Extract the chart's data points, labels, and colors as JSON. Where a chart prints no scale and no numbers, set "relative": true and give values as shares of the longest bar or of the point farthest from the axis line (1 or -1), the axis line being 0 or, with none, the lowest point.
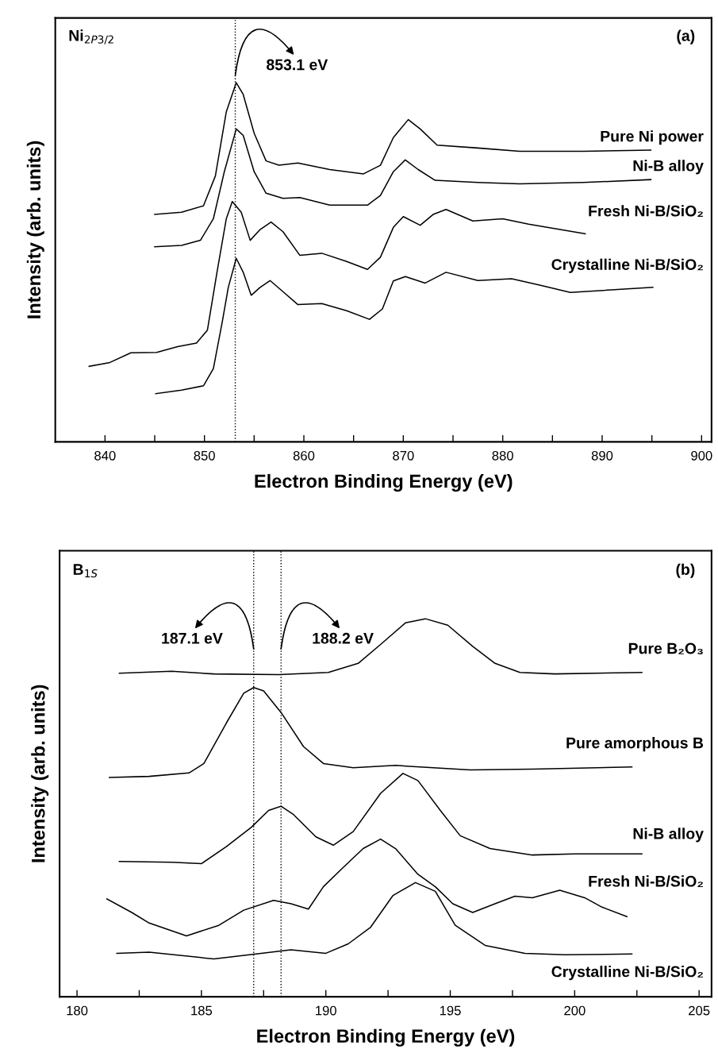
{
  "chart_data": [
    {
      "type": "line",
      "relative": true,
      "xlabel": "Electron Binding Energy (eV)",
      "ylabel": "Intensity (arb. units)",
      "xlim": [
        835,
        901
      ],
      "xticks": [
        840,
        {
          "value": 845,
          "label": null
        },
        850,
        {
          "value": 855,
          "label": null
        },
        860,
        {
          "value": 865,
          "label": null
        },
        870,
        {
          "value": 875,
          "label": null
        },
        880,
        {
          "value": 885,
          "label": null
        },
        890,
        {
          "value": 895,
          "label": null
        },
        900
      ],
      "annotations": [
        "Ni$_{2P3/2}$",
        "(a)",
        {
          "text": "853.1 eV",
          "x": 853.1,
          "y": 1.02
        }
      ],
      "ref_lines": [
        {
          "axis": "x",
          "value": 853.1,
          "line_style": "dotted",
          "color": "#000000"
        }
      ],
      "series": [
        {
          "name": "Pure Ni power",
          "color": "#000000",
          "x": [
            845.0,
            847.7,
            849.9,
            851.1,
            852.2,
            853.2,
            853.9,
            855.0,
            856.2,
            857.5,
            859.4,
            862.6,
            866.0,
            867.7,
            869.0,
            870.5,
            871.7,
            873.4,
            877.5,
            881.7,
            888.1,
            894.9
          ],
          "values": [
            0.633,
            0.639,
            0.657,
            0.74,
            0.919,
            1.0,
            0.967,
            0.859,
            0.782,
            0.77,
            0.776,
            0.758,
            0.746,
            0.77,
            0.847,
            0.897,
            0.871,
            0.826,
            0.818,
            0.809,
            0.809,
            0.812
          ]
        },
        {
          "name": "Ni-B alloy",
          "color": "#000000",
          "x": [
            845.0,
            847.7,
            849.6,
            850.9,
            852.0,
            853.2,
            853.9,
            855.0,
            856.2,
            857.9,
            859.6,
            862.6,
            866.4,
            867.7,
            869.0,
            870.2,
            871.5,
            873.2,
            877.5,
            881.7,
            888.1,
            894.9
          ],
          "values": [
            0.543,
            0.547,
            0.561,
            0.621,
            0.752,
            0.871,
            0.853,
            0.752,
            0.692,
            0.678,
            0.68,
            0.659,
            0.659,
            0.686,
            0.752,
            0.785,
            0.758,
            0.728,
            0.722,
            0.718,
            0.722,
            0.73
          ]
        },
        {
          "name": "Fresh Ni-B/SiO₂",
          "color": "#000000",
          "x": [
            838.4,
            840.5,
            842.6,
            845.2,
            847.3,
            849.2,
            850.3,
            851.3,
            852.2,
            852.8,
            853.7,
            854.6,
            855.6,
            856.7,
            857.9,
            859.6,
            861.8,
            864.3,
            866.4,
            867.7,
            869.0,
            870.0,
            871.7,
            873.0,
            874.3,
            877.0,
            880.0,
            882.6,
            888.3
          ],
          "values": [
            0.21,
            0.221,
            0.248,
            0.249,
            0.265,
            0.275,
            0.311,
            0.478,
            0.621,
            0.669,
            0.639,
            0.561,
            0.591,
            0.612,
            0.585,
            0.519,
            0.525,
            0.502,
            0.48,
            0.514,
            0.597,
            0.627,
            0.603,
            0.633,
            0.647,
            0.615,
            0.621,
            0.606,
            0.579
          ]
        },
        {
          "name": "Crystalline Ni-B/SiO₂",
          "color": "#000000",
          "x": [
            845.1,
            847.7,
            849.9,
            850.9,
            851.8,
            852.4,
            853.2,
            853.9,
            854.7,
            855.6,
            856.6,
            857.9,
            859.4,
            861.8,
            864.3,
            866.6,
            867.9,
            869.0,
            870.2,
            872.2,
            874.3,
            877.5,
            880.9,
            883.8,
            886.8,
            895.1
          ],
          "values": [
            0.134,
            0.144,
            0.156,
            0.204,
            0.335,
            0.43,
            0.511,
            0.472,
            0.408,
            0.43,
            0.449,
            0.418,
            0.382,
            0.385,
            0.365,
            0.341,
            0.37,
            0.448,
            0.46,
            0.442,
            0.472,
            0.449,
            0.454,
            0.436,
            0.416,
            0.43
          ]
        }
      ]
    },
    {
      "type": "line",
      "relative": true,
      "xlabel": "Electron Binding Energy (eV)",
      "ylabel": "Intensity (arb. units)",
      "xlim": [
        179.3,
        205.5
      ],
      "xticks": [
        180,
        {
          "value": 182.5,
          "label": null
        },
        185,
        {
          "value": 187.5,
          "label": null
        },
        190,
        {
          "value": 192.5,
          "label": null
        },
        195,
        {
          "value": 197.5,
          "label": null
        },
        200,
        {
          "value": 202.5,
          "label": null
        },
        205
      ],
      "annotations": [
        "B$_{1S}$",
        "(b)",
        {
          "text": "187.1 eV",
          "x": 187.1,
          "y": 0.92
        },
        {
          "text": "188.2 eV",
          "x": 188.2,
          "y": 0.92
        }
      ],
      "ref_lines": [
        {
          "axis": "x",
          "value": 187.1,
          "line_style": "dotted",
          "color": "#000000"
        },
        {
          "axis": "x",
          "value": 188.2,
          "line_style": "dotted",
          "color": "#000000"
        }
      ],
      "series": [
        {
          "name": "Pure B₂O₃",
          "color": "#000000",
          "x": [
            181.7,
            183.8,
            185.5,
            188.1,
            190.1,
            191.3,
            192.2,
            193.2,
            194.0,
            194.9,
            195.9,
            196.8,
            197.8,
            199.2,
            202.7
          ],
          "values": [
            0.856,
            0.861,
            0.854,
            0.852,
            0.858,
            0.882,
            0.932,
            0.989,
            1.0,
            0.983,
            0.927,
            0.882,
            0.858,
            0.854,
            0.858
          ]
        },
        {
          "name": "Pure amorphous B",
          "color": "#000000",
          "x": [
            181.3,
            182.9,
            184.5,
            185.1,
            186.0,
            186.7,
            187.1,
            187.5,
            188.2,
            189.1,
            189.9,
            191.1,
            192.8,
            195.8,
            198.3,
            202.3
          ],
          "values": [
            0.58,
            0.583,
            0.592,
            0.617,
            0.724,
            0.803,
            0.818,
            0.809,
            0.752,
            0.662,
            0.617,
            0.606,
            0.612,
            0.6,
            0.602,
            0.608
          ]
        },
        {
          "name": "Ni-B alloy",
          "color": "#000000",
          "x": [
            181.7,
            183.8,
            185.0,
            186.0,
            187.0,
            187.7,
            188.2,
            188.7,
            189.6,
            190.3,
            191.1,
            192.2,
            193.1,
            193.7,
            194.6,
            195.4,
            196.6,
            198.3,
            200.0,
            202.7
          ],
          "values": [
            0.358,
            0.356,
            0.352,
            0.397,
            0.448,
            0.493,
            0.504,
            0.482,
            0.423,
            0.401,
            0.437,
            0.538,
            0.591,
            0.572,
            0.493,
            0.426,
            0.392,
            0.375,
            0.378,
            0.378
          ]
        },
        {
          "name": "Fresh Ni-B/SiO₂",
          "color": "#000000",
          "x": [
            181.2,
            182.2,
            182.9,
            184.4,
            185.7,
            186.7,
            187.9,
            188.6,
            189.3,
            189.9,
            190.6,
            191.5,
            192.2,
            192.8,
            193.7,
            194.4,
            195.1,
            195.9,
            196.8,
            197.6,
            198.3,
            199.4,
            200.4,
            201.1,
            202.1
          ],
          "values": [
            0.259,
            0.223,
            0.195,
            0.161,
            0.189,
            0.229,
            0.255,
            0.246,
            0.232,
            0.291,
            0.336,
            0.392,
            0.417,
            0.392,
            0.324,
            0.291,
            0.246,
            0.223,
            0.246,
            0.266,
            0.262,
            0.282,
            0.262,
            0.237,
            0.212
          ]
        },
        {
          "name": "Crystalline Ni-B/SiO₂",
          "color": "#000000",
          "x": [
            181.6,
            182.9,
            185.5,
            187.4,
            188.6,
            190.0,
            190.9,
            191.8,
            192.7,
            193.6,
            194.4,
            195.2,
            196.4,
            198.0,
            199.6,
            202.3
          ],
          "values": [
            0.115,
            0.118,
            0.1,
            0.115,
            0.124,
            0.115,
            0.14,
            0.184,
            0.268,
            0.302,
            0.279,
            0.189,
            0.136,
            0.115,
            0.111,
            0.113
          ]
        }
      ]
    }
  ]
}
